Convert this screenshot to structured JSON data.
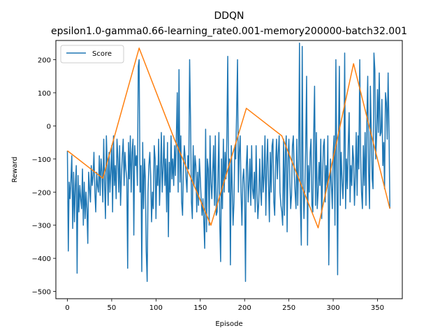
{
  "chart_data": {
    "type": "line",
    "title": "DDQN",
    "subtitle": "epsilon1.0-gamma0.66-learning_rate0.001-memory200000-batch32.001",
    "xlabel": "Episode",
    "ylabel": "Reward",
    "xlim": [
      -13,
      378
    ],
    "ylim": [
      -522,
      258
    ],
    "xticks": [
      0,
      50,
      100,
      150,
      200,
      250,
      300,
      350
    ],
    "yticks": [
      -500,
      -400,
      -300,
      -200,
      -100,
      0,
      100,
      200
    ],
    "grid": false,
    "legend_position": "upper left",
    "colors": {
      "score": "#1f77b4",
      "trend": "#ff7f0e"
    },
    "series": [
      {
        "name": "Score",
        "values": [
          -75,
          -378,
          -170,
          -220,
          -160,
          -90,
          -310,
          -140,
          -290,
          -180,
          -120,
          -445,
          -150,
          -260,
          -180,
          -220,
          -250,
          -130,
          -300,
          -170,
          -280,
          -200,
          -250,
          -355,
          -140,
          -190,
          -230,
          -120,
          -180,
          -150,
          -80,
          -200,
          -260,
          -140,
          -180,
          -200,
          -90,
          -210,
          -100,
          -140,
          -230,
          -40,
          -180,
          -280,
          -30,
          -120,
          -240,
          -80,
          -200,
          -140,
          -60,
          -260,
          -30,
          -180,
          -120,
          -220,
          -40,
          -100,
          -200,
          -60,
          -240,
          -150,
          -90,
          -40,
          -180,
          -80,
          -130,
          -160,
          -430,
          -50,
          -160,
          -30,
          -200,
          -80,
          -40,
          -330,
          -60,
          -120,
          -90,
          -180,
          180,
          200,
          -200,
          -120,
          -440,
          -50,
          -250,
          -100,
          -160,
          -380,
          -470,
          -200,
          -120,
          -80,
          -150,
          -290,
          -200,
          -250,
          -60,
          -100,
          -280,
          -120,
          -180,
          -40,
          -240,
          -150,
          -20,
          -200,
          -130,
          -30,
          -180,
          -100,
          -260,
          -50,
          -335,
          -110,
          -200,
          -30,
          -160,
          -100,
          -180,
          -60,
          -150,
          -30,
          100,
          -200,
          170,
          -170,
          -30,
          -230,
          -270,
          -120,
          -60,
          -100,
          -160,
          -200,
          -90,
          -130,
          200,
          20,
          -230,
          -280,
          -60,
          -180,
          -90,
          -120,
          -260,
          -140,
          -240,
          -100,
          -160,
          -220,
          -270,
          -220,
          -290,
          -370,
          -10,
          -320,
          -100,
          -130,
          -300,
          -30,
          -170,
          -220,
          -140,
          -60,
          -240,
          -30,
          -270,
          -260,
          -150,
          -20,
          -300,
          -410,
          -100,
          -250,
          -40,
          -200,
          -80,
          -160,
          -30,
          210,
          -200,
          -100,
          -420,
          -60,
          -180,
          -300,
          -230,
          -60,
          -100,
          40,
          200,
          -200,
          -80,
          -30,
          -200,
          -300,
          -160,
          -130,
          -200,
          -470,
          -120,
          -60,
          -230,
          -180,
          -100,
          -240,
          -60,
          -190,
          -220,
          -140,
          -260,
          -60,
          -200,
          -280,
          -230,
          -100,
          -190,
          -240,
          -60,
          -200,
          -150,
          -30,
          -270,
          -120,
          -40,
          -180,
          -290,
          -80,
          -200,
          -60,
          -40,
          -230,
          -270,
          -120,
          -40,
          -160,
          -80,
          -30,
          -200,
          -240,
          -260,
          -300,
          -40,
          -270,
          -80,
          -30,
          -320,
          -100,
          -40,
          -160,
          -250,
          -210,
          -60,
          -30,
          -140,
          -200,
          -250,
          -40,
          -240,
          -100,
          250,
          -240,
          -360,
          240,
          -160,
          -280,
          -190,
          -60,
          150,
          -360,
          -120,
          -200,
          -80,
          -40,
          -240,
          -260,
          -30,
          120,
          -240,
          -20,
          -250,
          -200,
          -110,
          -180,
          -40,
          -280,
          -160,
          -60,
          -40,
          -230,
          -120,
          -180,
          -30,
          -420,
          -210,
          -100,
          -180,
          -250,
          -80,
          -30,
          -300,
          200,
          -100,
          -450,
          -20,
          180,
          -240,
          -80,
          -160,
          -220,
          -130,
          220,
          -250,
          -100,
          -190,
          -60,
          40,
          -230,
          -120,
          -180,
          -60,
          -100,
          -240,
          -150,
          -20,
          -210,
          -30,
          -130,
          200,
          -90,
          -200,
          -250,
          -60,
          -180,
          -20,
          -240,
          20,
          150,
          -140,
          -250,
          120,
          -20,
          -160,
          -190,
          220,
          170,
          -100,
          -30,
          110,
          -20,
          160,
          -30,
          -20,
          80,
          -120,
          -50,
          -190,
          100,
          70,
          -40,
          160,
          -20,
          -250
        ]
      },
      {
        "name": "",
        "x": [
          0,
          40,
          81,
          121,
          162,
          202,
          242,
          283,
          323,
          364
        ],
        "values": [
          -75,
          -158,
          235,
          -42,
          -300,
          53,
          -30,
          -308,
          188,
          -250
        ]
      }
    ]
  }
}
